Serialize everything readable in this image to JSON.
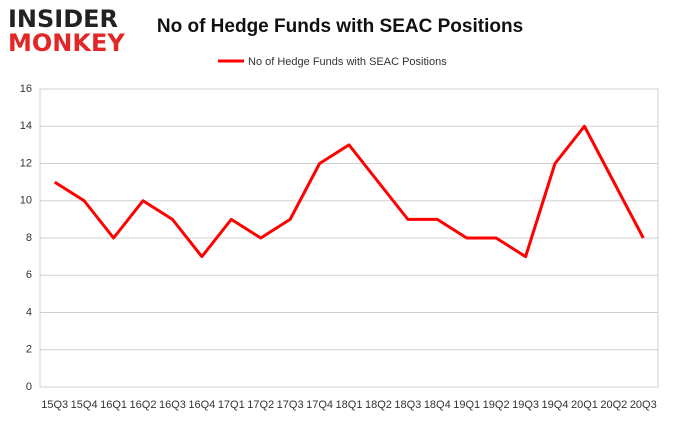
{
  "logo": {
    "line1": "INSIDER",
    "line2": "MONKEY"
  },
  "chart_data": {
    "type": "line",
    "title": "No of Hedge Funds with SEAC Positions",
    "categories": [
      "15Q3",
      "15Q4",
      "16Q1",
      "16Q2",
      "16Q3",
      "16Q4",
      "17Q1",
      "17Q2",
      "17Q3",
      "17Q4",
      "18Q1",
      "18Q2",
      "18Q3",
      "18Q4",
      "19Q1",
      "19Q2",
      "19Q3",
      "19Q4",
      "20Q1",
      "20Q2",
      "20Q3"
    ],
    "series": [
      {
        "name": "No of Hedge Funds with SEAC Positions",
        "color": "#ff0000",
        "values": [
          11,
          10,
          8,
          10,
          9,
          7,
          9,
          8,
          9,
          12,
          13,
          11,
          9,
          9,
          8,
          8,
          7,
          12,
          14,
          11,
          8
        ]
      }
    ],
    "ylim": [
      0,
      16
    ],
    "yticks": [
      0,
      2,
      4,
      6,
      8,
      10,
      12,
      14,
      16
    ],
    "grid": true,
    "legend": "top"
  }
}
